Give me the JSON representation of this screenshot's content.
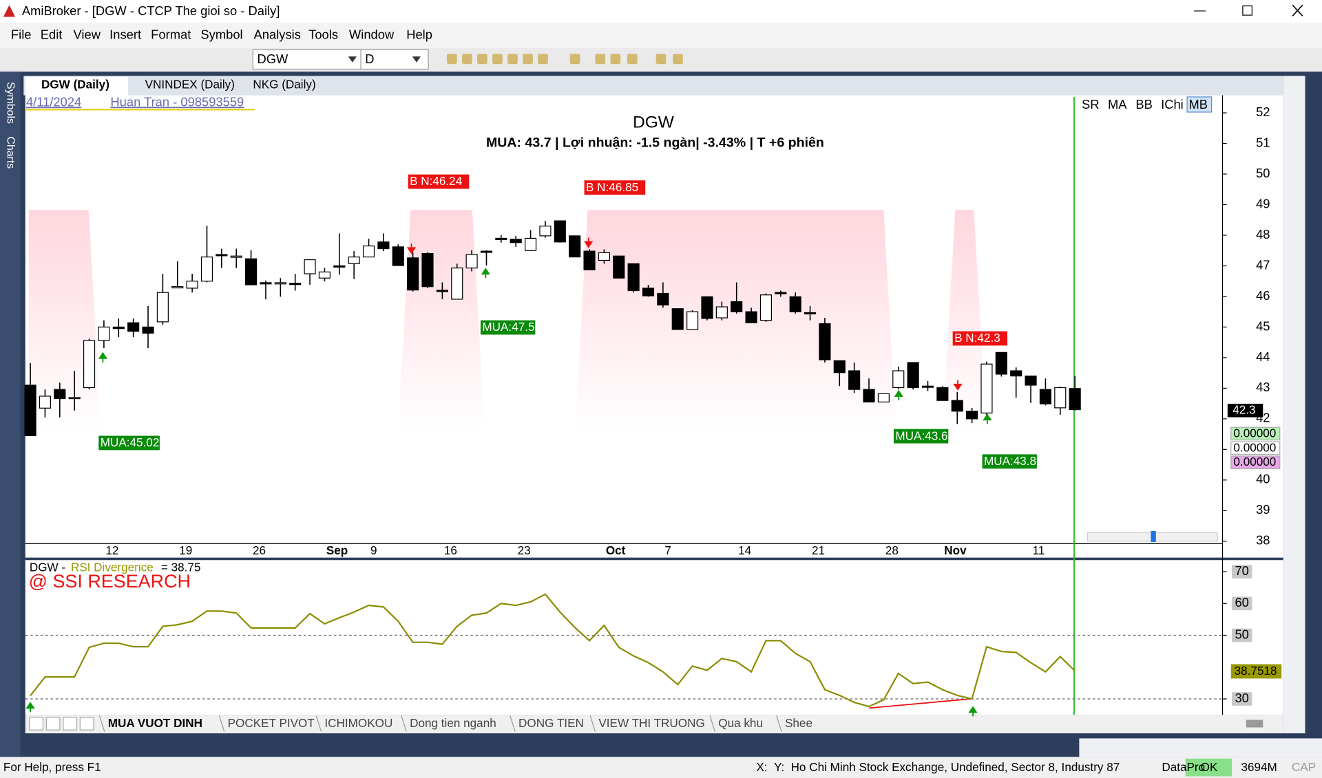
{
  "window": {
    "title": "AmiBroker - [DGW - CTCP The gioi so - Daily]"
  },
  "menu": [
    "File",
    "Edit",
    "View",
    "Insert",
    "Format",
    "Symbol",
    "Analysis",
    "Tools",
    "Window",
    "Help"
  ],
  "toolbar": {
    "symbol": "DGW",
    "interval": "D"
  },
  "side_panel": [
    "Symbols",
    "Charts"
  ],
  "chart_tabs": [
    "DGW (Daily)",
    "VNINDEX (Daily)",
    "NKG (Daily)"
  ],
  "indicator_buttons": [
    "SR",
    "MA",
    "BB",
    "IChi",
    "MB"
  ],
  "header": {
    "date": "4/11/2024",
    "author": "Huan Tran - 098593559"
  },
  "axis_boxes": {
    "last_price": "42.3",
    "zero_values": [
      "0.00000",
      "0.00000",
      "0.00000"
    ],
    "rsi_last": "38.7518"
  },
  "chart_data": [
    {
      "type": "candlestick",
      "title": "DGW",
      "subtitle": "MUA:  43.7 | Lợi nhuận: -1.5 ngàn| -3.43% | T +6 phiên",
      "categories": [
        null,
        null,
        null,
        null,
        null,
        "12",
        null,
        null,
        null,
        null,
        "19",
        null,
        null,
        null,
        null,
        "26",
        null,
        null,
        null,
        null,
        "Sep",
        null,
        null,
        "9",
        null,
        null,
        null,
        null,
        "16",
        null,
        null,
        null,
        null,
        "23",
        null,
        null,
        null,
        null,
        null,
        "Oct",
        null,
        null,
        null,
        "7",
        null,
        null,
        null,
        null,
        "14",
        null,
        null,
        null,
        null,
        "21",
        null,
        null,
        null,
        null,
        "28",
        null,
        null,
        null,
        "Nov",
        null,
        null,
        null,
        null,
        null,
        "11",
        null,
        null,
        null
      ],
      "open": [
        43.1,
        42.35,
        42.96,
        42.66,
        43.02,
        44.56,
        45.0,
        45.14,
        45.0,
        45.17,
        46.3,
        46.27,
        46.5,
        47.37,
        47.3,
        47.23,
        46.45,
        46.42,
        46.43,
        46.74,
        46.6,
        47.0,
        47.07,
        47.29,
        47.78,
        47.62,
        47.26,
        47.4,
        46.2,
        45.91,
        46.93,
        47.48,
        47.9,
        47.87,
        47.5,
        47.98,
        48.47,
        47.98,
        47.48,
        47.18,
        47.32,
        47.07,
        46.27,
        46.1,
        45.6,
        44.92,
        45.99,
        45.3,
        45.83,
        45.5,
        45.22,
        46.13,
        45.99,
        45.47,
        45.11,
        43.9,
        43.57,
        42.96,
        42.55,
        43.02,
        43.84,
        43.07,
        43.02,
        42.6,
        42.25,
        42.19,
        44.17,
        43.57,
        43.4,
        42.96,
        42.36,
        42.99
      ],
      "high": [
        43.82,
        42.96,
        43.18,
        43.57,
        44.62,
        45.22,
        45.28,
        45.28,
        45.69,
        46.74,
        47.15,
        46.74,
        48.31,
        47.56,
        47.56,
        47.51,
        46.52,
        46.6,
        46.74,
        47.21,
        46.93,
        48.06,
        47.48,
        47.89,
        48.06,
        47.7,
        47.45,
        47.45,
        46.46,
        47.07,
        47.51,
        47.51,
        48.0,
        47.98,
        48.17,
        48.47,
        48.47,
        47.98,
        47.54,
        47.54,
        47.32,
        47.07,
        46.38,
        46.46,
        45.61,
        45.55,
        45.99,
        45.83,
        46.46,
        45.63,
        46.1,
        46.19,
        46.13,
        45.69,
        45.3,
        43.9,
        43.84,
        43.32,
        42.82,
        43.71,
        43.84,
        43.24,
        43.07,
        42.88,
        42.36,
        43.87,
        44.17,
        43.68,
        43.4,
        43.32,
        43.05,
        43.4
      ],
      "low": [
        41.45,
        42.05,
        42.05,
        42.27,
        42.96,
        44.31,
        44.67,
        44.67,
        44.31,
        45.08,
        46.27,
        46.13,
        46.46,
        46.93,
        46.93,
        46.38,
        45.91,
        45.99,
        46.19,
        46.38,
        46.49,
        46.71,
        46.57,
        47.29,
        47.48,
        47.01,
        46.16,
        46.27,
        45.91,
        45.91,
        46.82,
        47.01,
        47.76,
        47.62,
        47.48,
        47.92,
        47.76,
        47.29,
        46.87,
        47.07,
        46.6,
        46.13,
        45.99,
        45.63,
        44.92,
        44.92,
        45.22,
        45.22,
        45.44,
        45.14,
        45.17,
        45.99,
        45.44,
        45.22,
        43.84,
        43.07,
        42.85,
        42.55,
        42.55,
        42.96,
        42.96,
        42.91,
        42.6,
        41.83,
        41.86,
        42.13,
        43.38,
        42.69,
        42.52,
        42.44,
        42.13,
        42.27
      ],
      "close": [
        41.45,
        42.74,
        42.66,
        42.7,
        44.56,
        45.0,
        44.95,
        44.86,
        44.8,
        46.13,
        46.32,
        46.5,
        47.29,
        47.35,
        47.32,
        46.38,
        46.43,
        46.45,
        46.4,
        47.2,
        46.8,
        46.98,
        47.29,
        47.65,
        47.56,
        47.01,
        46.21,
        46.32,
        46.17,
        46.93,
        47.37,
        47.45,
        47.88,
        47.76,
        47.9,
        48.3,
        47.78,
        47.29,
        46.87,
        47.43,
        46.6,
        46.19,
        46.02,
        45.72,
        44.92,
        45.5,
        45.28,
        45.66,
        45.5,
        45.14,
        46.05,
        46.1,
        45.5,
        45.45,
        43.93,
        43.51,
        42.96,
        42.55,
        42.82,
        43.57,
        43.02,
        43.05,
        42.6,
        42.25,
        42.0,
        43.79,
        43.46,
        43.4,
        43.1,
        42.49,
        43.02,
        42.3
      ],
      "up_color": "#ffffff",
      "down_color": "#000000",
      "ylim": [
        37.92,
        52.52
      ],
      "yticks": [
        38,
        39,
        40,
        41,
        42,
        43,
        44,
        45,
        46,
        47,
        48,
        49,
        50,
        51,
        52
      ],
      "annotations": [
        {
          "text": "B N:46.24",
          "color": "#ee1111"
        },
        {
          "text": "B N:46.85",
          "color": "#ee1111"
        },
        {
          "text": "B N:42.3",
          "color": "#ee1111"
        },
        {
          "text": "MUA:45.02",
          "color": "#0a8a0a"
        },
        {
          "text": "MUA:47.5",
          "color": "#0a8a0a"
        },
        {
          "text": "MUA:43.6",
          "color": "#0a8a0a"
        },
        {
          "text": "MUA:43.8",
          "color": "#0a8a0a"
        }
      ]
    },
    {
      "type": "line",
      "panel_label": {
        "symbol": "DGW - ",
        "indicator": "RSI Divergence",
        "value": "= 38.75"
      },
      "watermark": "@ SSI RESEARCH",
      "values": [
        31,
        36.9,
        36.9,
        36.9,
        46.2,
        47.5,
        47.5,
        46.4,
        46.4,
        52.8,
        53.3,
        54.4,
        57.6,
        57.6,
        57,
        52.3,
        52.3,
        52.3,
        52.3,
        56.8,
        53.6,
        55.5,
        57.3,
        59.4,
        58.9,
        54.4,
        47.8,
        47.8,
        47.2,
        52.8,
        56.3,
        57,
        60,
        59.4,
        60.5,
        62.9,
        57.3,
        52.5,
        48.3,
        53.1,
        46.2,
        43.5,
        41.4,
        38.5,
        34.5,
        40.3,
        39,
        42.7,
        41.7,
        38.5,
        48.3,
        48.3,
        44.3,
        41.7,
        32.9,
        31.1,
        28.9,
        27.6,
        29.7,
        38,
        34.8,
        35.3,
        32.9,
        31.1,
        30,
        46.4,
        44.9,
        44.6,
        41.4,
        38.5,
        43.3,
        38.7518
      ],
      "color": "#8c8c00",
      "ylim": [
        25,
        73.5
      ],
      "yticks": [
        30,
        50,
        60,
        70
      ],
      "levels": [
        30,
        50
      ]
    }
  ],
  "sheet_tabs": [
    "MUA VUOT DINH",
    "POCKET PIVOT",
    "ICHIMOKOU",
    "Dong tien nganh",
    "DONG TIEN",
    "VIEW THI TRUONG",
    "Qua khu",
    "Shee"
  ],
  "status": {
    "help": "For Help, press F1",
    "x": "X:",
    "y": "Y:",
    "info": "Ho Chi Minh Stock Exchange, Undefined, Sector 8, Industry 87",
    "source": "DataPro",
    "ok": "OK",
    "memory": "3694M",
    "cap": "CAP"
  }
}
